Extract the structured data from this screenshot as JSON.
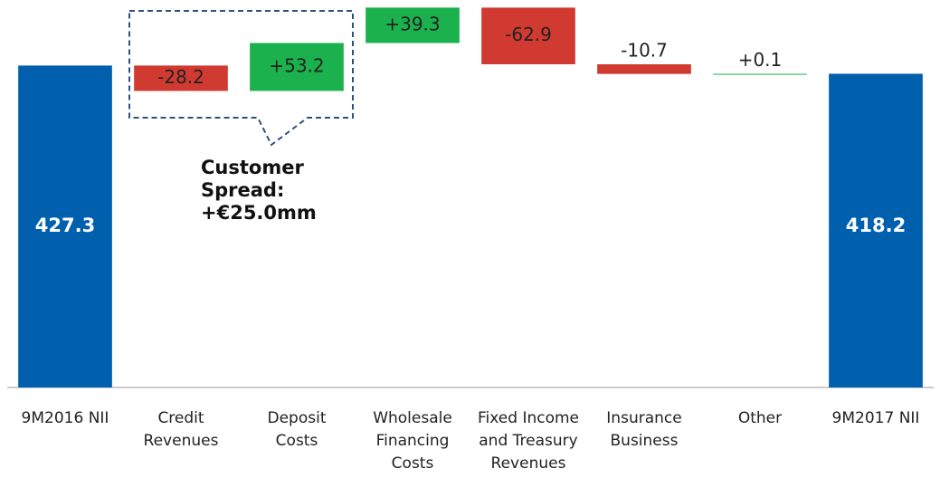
{
  "chart_data": {
    "type": "waterfall",
    "categories": [
      "9M2016 NII",
      "Credit\nRevenues",
      "Deposit\nCosts",
      "Wholesale\nFinancing\nCosts",
      "Fixed Income\nand Treasury\nRevenues",
      "Insurance\nBusiness",
      "Other",
      "9M2017 NII"
    ],
    "values": [
      427.3,
      -28.2,
      53.2,
      39.3,
      -62.9,
      -10.7,
      0.1,
      418.2
    ],
    "value_labels": [
      "427.3",
      "-28.2",
      "+53.2",
      "+39.3",
      "-62.9",
      "-10.7",
      "+0.1",
      "418.2"
    ],
    "is_total": [
      true,
      false,
      false,
      false,
      false,
      false,
      false,
      true
    ],
    "colors": {
      "total": "#0060ae",
      "increase": "#1bb14c",
      "decrease": "#d03a30"
    },
    "ylim": [
      70,
      492
    ],
    "annotation": "Customer\nSpread:\n+€25.0mm"
  }
}
